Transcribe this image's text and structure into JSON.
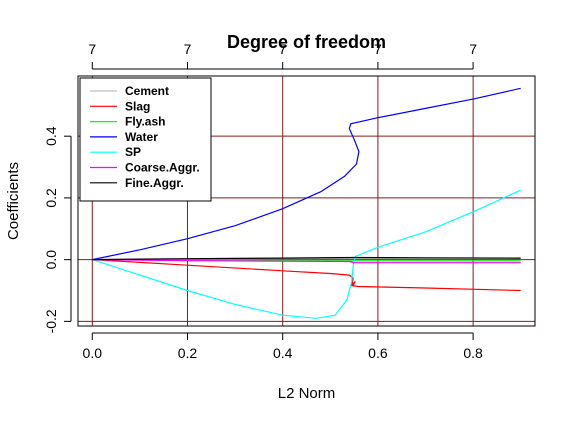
{
  "chart_data": {
    "type": "line",
    "title": "Degree of freedom",
    "xlabel": "L2 Norm",
    "ylabel": "Coefficients",
    "xlim": [
      -0.03,
      0.93
    ],
    "ylim": [
      -0.215,
      0.595
    ],
    "x_ticks": [
      "0.0",
      "0.2",
      "0.4",
      "0.6",
      "0.8"
    ],
    "x_tick_values": [
      0,
      0.2,
      0.4,
      0.6,
      0.8
    ],
    "y_ticks": [
      "-0.2",
      "0.0",
      "0.2",
      "0.4"
    ],
    "y_tick_values": [
      -0.2,
      0,
      0.2,
      0.4
    ],
    "top_ticks": [
      "7",
      "7",
      "7",
      "7",
      "7"
    ],
    "top_tick_values": [
      0,
      0.2,
      0.4,
      0.6,
      0.8
    ],
    "grid": true,
    "grid_color": "#8b1a1a",
    "legend_position": "top-left",
    "series": [
      {
        "name": "Cement",
        "color": "#bebebe",
        "x": [
          0,
          0.2,
          0.4,
          0.55,
          0.7,
          0.9
        ],
        "y": [
          0,
          0.002,
          0.003,
          0.004,
          0.004,
          0.004
        ]
      },
      {
        "name": "Slag",
        "color": "#ff0000",
        "x": [
          0,
          0.2,
          0.4,
          0.5,
          0.54,
          0.548,
          0.545,
          0.552,
          0.548,
          0.56,
          0.7,
          0.9
        ],
        "y": [
          0,
          -0.018,
          -0.036,
          -0.045,
          -0.05,
          -0.06,
          -0.085,
          -0.07,
          -0.085,
          -0.087,
          -0.092,
          -0.1
        ]
      },
      {
        "name": "Fly.ash",
        "color": "#00ff00",
        "x": [
          0,
          0.2,
          0.4,
          0.55,
          0.7,
          0.9
        ],
        "y": [
          0,
          -0.002,
          -0.003,
          -0.004,
          -0.004,
          -0.004
        ]
      },
      {
        "name": "Water",
        "color": "#0000ff",
        "x": [
          0,
          0.1,
          0.2,
          0.3,
          0.4,
          0.48,
          0.53,
          0.555,
          0.56,
          0.55,
          0.54,
          0.543,
          0.6,
          0.7,
          0.8,
          0.9
        ],
        "y": [
          0,
          0.032,
          0.068,
          0.11,
          0.165,
          0.22,
          0.27,
          0.31,
          0.35,
          0.39,
          0.425,
          0.44,
          0.46,
          0.49,
          0.52,
          0.555
        ]
      },
      {
        "name": "SP",
        "color": "#00ffff",
        "x": [
          0,
          0.1,
          0.2,
          0.3,
          0.4,
          0.47,
          0.51,
          0.535,
          0.545,
          0.548,
          0.552,
          0.6,
          0.7,
          0.8,
          0.9
        ],
        "y": [
          0,
          -0.05,
          -0.1,
          -0.145,
          -0.18,
          -0.19,
          -0.18,
          -0.13,
          -0.07,
          -0.02,
          0.01,
          0.04,
          0.09,
          0.155,
          0.225
        ]
      },
      {
        "name": "Coarse.Aggr.",
        "color": "#ff00ff",
        "x": [
          0,
          0.2,
          0.4,
          0.54,
          0.55,
          0.7,
          0.9
        ],
        "y": [
          0,
          -0.003,
          -0.005,
          -0.006,
          -0.01,
          -0.01,
          -0.01
        ]
      },
      {
        "name": "Fine.Aggr.",
        "color": "#000000",
        "x": [
          0,
          0.2,
          0.4,
          0.55,
          0.7,
          0.9
        ],
        "y": [
          0,
          0.003,
          0.005,
          0.007,
          0.006,
          0.005
        ]
      }
    ]
  }
}
